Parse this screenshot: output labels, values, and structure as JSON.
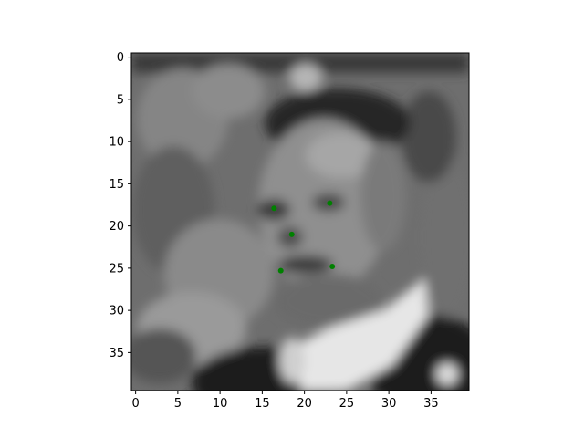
{
  "chart_data": {
    "type": "scatter",
    "title": "",
    "xlabel": "",
    "ylabel": "",
    "image_grid": {
      "columns": 40,
      "rows": 40,
      "colormap": "gray",
      "content": "blurred grayscale face"
    },
    "xlim": [
      -0.5,
      39.5
    ],
    "ylim": [
      39.5,
      -0.5
    ],
    "y_inverted": true,
    "grid": false,
    "legend": "none",
    "x_ticks": [
      {
        "value": 0,
        "label": "0"
      },
      {
        "value": 5,
        "label": "5"
      },
      {
        "value": 10,
        "label": "10"
      },
      {
        "value": 15,
        "label": "15"
      },
      {
        "value": 20,
        "label": "20"
      },
      {
        "value": 25,
        "label": "25"
      },
      {
        "value": 30,
        "label": "30"
      },
      {
        "value": 35,
        "label": "35"
      }
    ],
    "y_ticks": [
      {
        "value": 0,
        "label": "0"
      },
      {
        "value": 5,
        "label": "5"
      },
      {
        "value": 10,
        "label": "10"
      },
      {
        "value": 15,
        "label": "15"
      },
      {
        "value": 20,
        "label": "20"
      },
      {
        "value": 25,
        "label": "25"
      },
      {
        "value": 30,
        "label": "30"
      },
      {
        "value": 35,
        "label": "35"
      }
    ],
    "series": [
      {
        "color": "#008000",
        "marker": "circle",
        "points": [
          {
            "x": 16.4,
            "y": 17.9
          },
          {
            "x": 23.0,
            "y": 17.3
          },
          {
            "x": 18.5,
            "y": 21.0
          },
          {
            "x": 17.2,
            "y": 25.3
          },
          {
            "x": 23.3,
            "y": 24.8
          }
        ]
      }
    ]
  }
}
